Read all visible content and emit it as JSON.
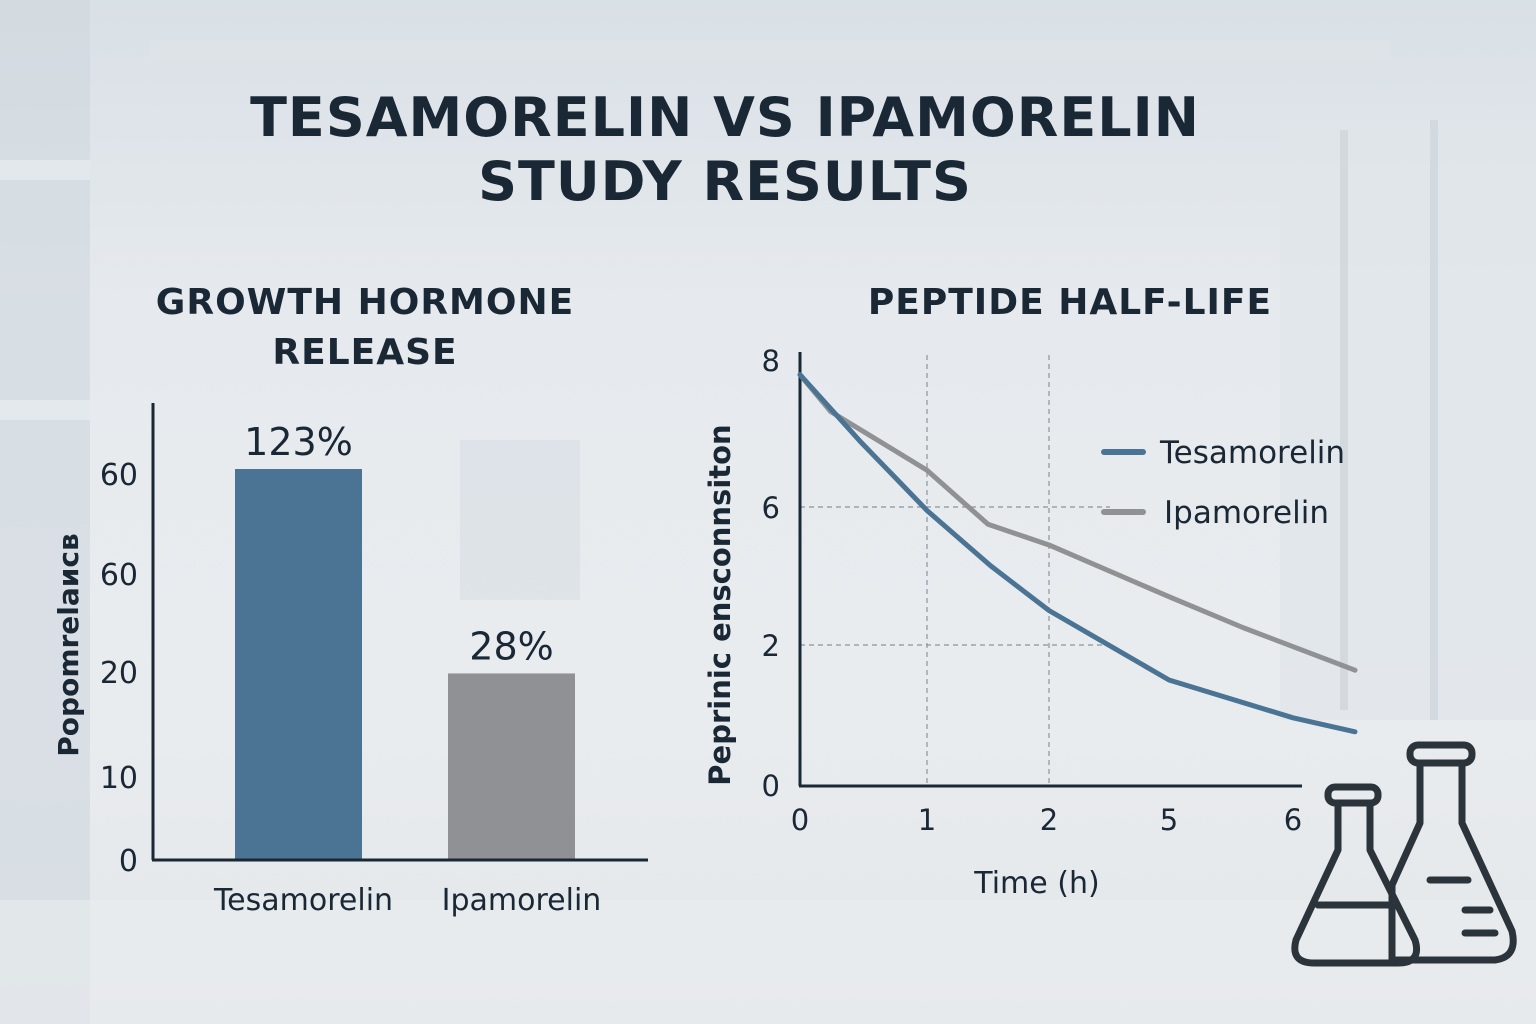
{
  "title_line1": "TESAMORELIN VS IPAMORELIN",
  "title_line2": "STUDY RESULTS",
  "colors": {
    "tesamorelin": "#4b7394",
    "ipamorelin": "#8f9195",
    "text": "#1a2836"
  },
  "icons": [
    "flask-icon",
    "erlenmeyer-flask-icon"
  ],
  "chart_data": [
    {
      "type": "bar",
      "title": "GROWTH HORMONE RELEASE",
      "title_line1": "GROWTH HORMONE",
      "title_line2": "RELEASE",
      "ylabel": "Popomrelaиcв",
      "y_tick_labels": [
        "0",
        "10",
        "20",
        "60",
        "60"
      ],
      "categories": [
        "Tesamorelin",
        "Ipamorelin"
      ],
      "values": [
        123,
        28
      ],
      "data_labels": [
        "123%",
        "28%"
      ],
      "grid": false
    },
    {
      "type": "line",
      "title": "PEPTIDE HALF-LIFE",
      "xlabel": "Time (h)",
      "ylabel": "Peprinic ensconnsiton",
      "x_ticks": [
        0,
        1,
        2,
        5,
        6
      ],
      "y_ticks": [
        0,
        2,
        6,
        8
      ],
      "grid": "dashed at x=1,2 and y=2,6",
      "legend_position": "right",
      "series": [
        {
          "name": "Tesamorelin",
          "x": [
            0,
            0.47,
            1,
            1.52,
            2,
            5,
            6,
            6.5
          ],
          "y": [
            7.8,
            6.9,
            5.9,
            4.3,
            3.0,
            1.5,
            0.96,
            0.76
          ]
        },
        {
          "name": "Ipamorelin",
          "x": [
            0,
            0.24,
            1,
            1.5,
            2,
            5,
            5.6,
            6.5
          ],
          "y": [
            7.8,
            7.3,
            6.5,
            5.5,
            4.9,
            3.4,
            2.5,
            1.64
          ]
        }
      ]
    }
  ]
}
